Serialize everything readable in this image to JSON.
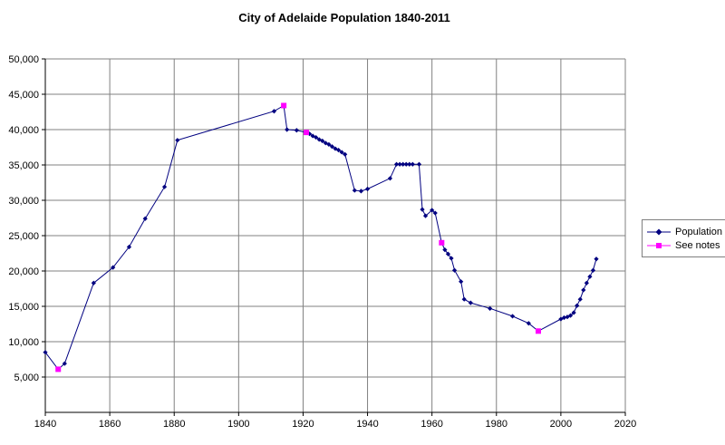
{
  "title": "City of Adelaide Population 1840-2011",
  "legend": {
    "items": [
      {
        "label": "Population",
        "color": "#000080",
        "marker": "diamond"
      },
      {
        "label": "See notes",
        "color": "#FF00FF",
        "marker": "square"
      }
    ]
  },
  "chart_data": {
    "type": "line",
    "title": "City of Adelaide Population 1840-2011",
    "xlabel": "",
    "ylabel": "",
    "xlim": [
      1840,
      2020
    ],
    "ylim": [
      0,
      50000
    ],
    "x_ticks": [
      1840,
      1860,
      1880,
      1900,
      1920,
      1940,
      1960,
      1980,
      2000,
      2020
    ],
    "y_ticks": [
      5000,
      10000,
      15000,
      20000,
      25000,
      30000,
      35000,
      40000,
      45000,
      50000
    ],
    "grid": true,
    "grid_color": "#808080",
    "axis_color": "#000000",
    "legend_position": "right-middle",
    "series": [
      {
        "name": "Population",
        "color": "#000080",
        "marker": "diamond",
        "points": [
          [
            1840,
            8500
          ],
          [
            1844,
            6100
          ],
          [
            1846,
            6900
          ],
          [
            1855,
            18300
          ],
          [
            1861,
            20500
          ],
          [
            1866,
            23400
          ],
          [
            1871,
            27400
          ],
          [
            1877,
            31900
          ],
          [
            1881,
            38500
          ],
          [
            1911,
            42600
          ],
          [
            1914,
            43400
          ],
          [
            1915,
            40000
          ],
          [
            1918,
            39900
          ],
          [
            1921,
            39600
          ],
          [
            1922,
            39400
          ],
          [
            1923,
            39100
          ],
          [
            1924,
            38900
          ],
          [
            1925,
            38600
          ],
          [
            1926,
            38400
          ],
          [
            1927,
            38100
          ],
          [
            1928,
            37900
          ],
          [
            1929,
            37600
          ],
          [
            1930,
            37300
          ],
          [
            1931,
            37100
          ],
          [
            1932,
            36800
          ],
          [
            1933,
            36500
          ],
          [
            1936,
            31400
          ],
          [
            1938,
            31300
          ],
          [
            1940,
            31600
          ],
          [
            1947,
            33100
          ],
          [
            1949,
            35100
          ],
          [
            1950,
            35100
          ],
          [
            1951,
            35100
          ],
          [
            1952,
            35100
          ],
          [
            1953,
            35100
          ],
          [
            1954,
            35100
          ],
          [
            1956,
            35100
          ],
          [
            1957,
            28700
          ],
          [
            1958,
            27800
          ],
          [
            1960,
            28600
          ],
          [
            1961,
            28200
          ],
          [
            1963,
            24000
          ],
          [
            1964,
            23000
          ],
          [
            1965,
            22400
          ],
          [
            1966,
            21800
          ],
          [
            1967,
            20100
          ],
          [
            1969,
            18500
          ],
          [
            1970,
            16000
          ],
          [
            1972,
            15500
          ],
          [
            1978,
            14700
          ],
          [
            1985,
            13600
          ],
          [
            1990,
            12600
          ],
          [
            1993,
            11500
          ],
          [
            2000,
            13200
          ],
          [
            2001,
            13400
          ],
          [
            2002,
            13500
          ],
          [
            2003,
            13700
          ],
          [
            2004,
            14100
          ],
          [
            2005,
            15100
          ],
          [
            2006,
            16000
          ],
          [
            2007,
            17300
          ],
          [
            2008,
            18300
          ],
          [
            2009,
            19200
          ],
          [
            2010,
            20100
          ],
          [
            2011,
            21700
          ]
        ]
      },
      {
        "name": "See notes",
        "color": "#FF00FF",
        "marker": "square",
        "points": [
          [
            1844,
            6100
          ],
          [
            1914,
            43400
          ],
          [
            1921,
            39600
          ],
          [
            1963,
            24000
          ],
          [
            1993,
            11500
          ]
        ]
      }
    ]
  }
}
